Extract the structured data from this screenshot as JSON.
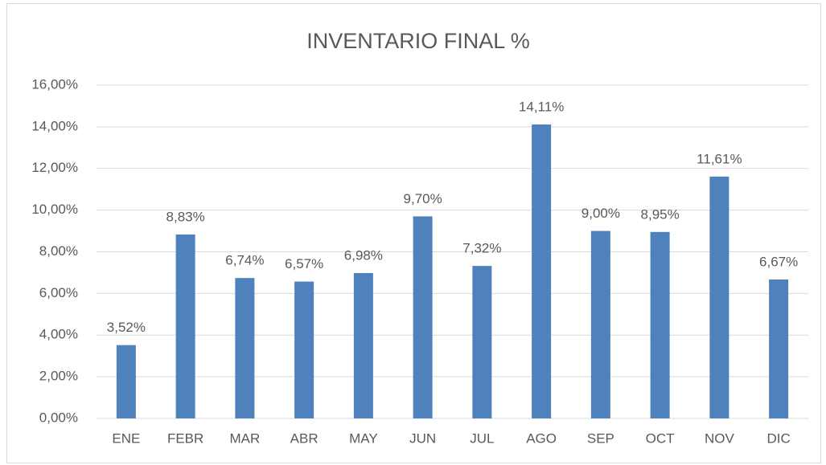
{
  "chart_data": {
    "type": "bar",
    "title": "INVENTARIO FINAL %",
    "categories": [
      "ENE",
      "FEBR",
      "MAR",
      "ABR",
      "MAY",
      "JUN",
      "JUL",
      "AGO",
      "SEP",
      "OCT",
      "NOV",
      "DIC"
    ],
    "values": [
      3.52,
      8.83,
      6.74,
      6.57,
      6.98,
      9.7,
      7.32,
      14.11,
      9.0,
      8.95,
      11.61,
      6.67
    ],
    "value_labels": [
      "3,52%",
      "8,83%",
      "6,74%",
      "6,57%",
      "6,98%",
      "9,70%",
      "7,32%",
      "14,11%",
      "9,00%",
      "8,95%",
      "11,61%",
      "6,67%"
    ],
    "color": "#4f81bd",
    "ylim": [
      0,
      16
    ],
    "yticks": [
      {
        "value": 0,
        "label": "0,00%"
      },
      {
        "value": 2,
        "label": "2,00%"
      },
      {
        "value": 4,
        "label": "4,00%"
      },
      {
        "value": 6,
        "label": "6,00%"
      },
      {
        "value": 8,
        "label": "8,00%"
      },
      {
        "value": 10,
        "label": "10,00%"
      },
      {
        "value": 12,
        "label": "12,00%"
      },
      {
        "value": 14,
        "label": "14,00%"
      },
      {
        "value": 16,
        "label": "16,00%"
      }
    ],
    "grid": true
  }
}
